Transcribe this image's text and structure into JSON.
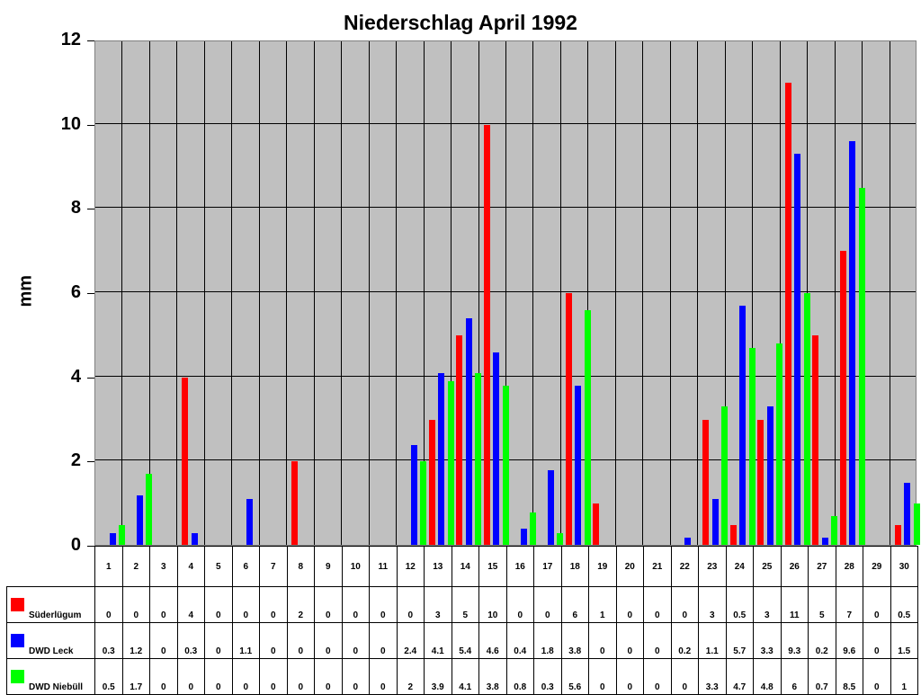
{
  "chart_data": {
    "type": "bar",
    "title": "Niederschlag April 1992",
    "xlabel": "",
    "ylabel": "mm",
    "ylim": [
      0,
      12
    ],
    "yticks": [
      0,
      2,
      4,
      6,
      8,
      10,
      12
    ],
    "grid": true,
    "legend_position": "table-bottom",
    "categories": [
      "1",
      "2",
      "3",
      "4",
      "5",
      "6",
      "7",
      "8",
      "9",
      "10",
      "11",
      "12",
      "13",
      "14",
      "15",
      "16",
      "17",
      "18",
      "19",
      "20",
      "21",
      "22",
      "23",
      "24",
      "25",
      "26",
      "27",
      "28",
      "29",
      "30"
    ],
    "series": [
      {
        "name": "Süderlügum",
        "color": "#ff0000",
        "values": [
          0,
          0,
          0,
          4,
          0,
          0,
          0,
          2,
          0,
          0,
          0,
          0,
          3,
          5,
          10,
          0,
          0,
          6,
          1,
          0,
          0,
          0,
          3,
          0.5,
          3,
          11,
          5,
          7,
          0,
          0.5
        ]
      },
      {
        "name": "DWD Leck",
        "color": "#0000ff",
        "values": [
          0.3,
          1.2,
          0,
          0.3,
          0,
          1.1,
          0,
          0,
          0,
          0,
          0,
          2.4,
          4.1,
          5.4,
          4.6,
          0.4,
          1.8,
          3.8,
          0,
          0,
          0,
          0.2,
          1.1,
          5.7,
          3.3,
          9.3,
          0.2,
          9.6,
          0,
          1.5
        ]
      },
      {
        "name": "DWD Niebüll",
        "color": "#00ff00",
        "values": [
          0.5,
          1.7,
          0,
          0,
          0,
          0,
          0,
          0,
          0,
          0,
          0,
          2,
          3.9,
          4.1,
          3.8,
          0.8,
          0.3,
          5.6,
          0,
          0,
          0,
          0,
          3.3,
          4.7,
          4.8,
          6,
          0.7,
          8.5,
          0,
          1
        ]
      }
    ]
  },
  "colors": {
    "plot_bg": "#c0c0c0"
  }
}
